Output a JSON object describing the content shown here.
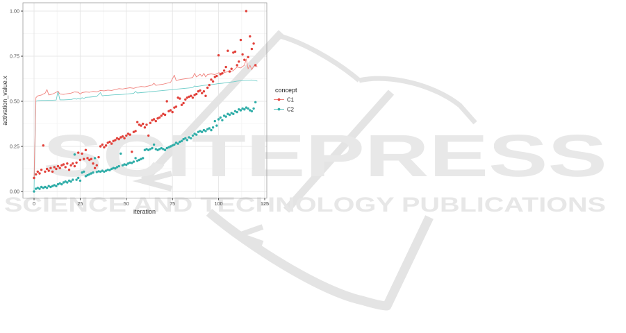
{
  "figure": {
    "description": "Line and scatter plot of activation values per iteration for two concepts, with SCITEPRESS watermark"
  },
  "watermark": {
    "logo_text": "SCITEPRESS",
    "sub_text": "SCIENCE AND TECHNOLOGY PUBLICATIONS",
    "color_letters": "#e8e8e8",
    "color_logo": "#e4e4e4"
  },
  "chart_data": {
    "type": "line+scatter",
    "xlabel": "iteration",
    "ylabel": "activation_value.x",
    "xlim": [
      -6,
      126
    ],
    "ylim": [
      -0.037,
      1.046
    ],
    "x_ticks": [
      0,
      25,
      50,
      75,
      100,
      125
    ],
    "x_tick_labels": [
      "0",
      "25",
      "50",
      "75",
      "100",
      "125"
    ],
    "y_ticks": [
      0,
      0.25,
      0.5,
      0.75,
      1
    ],
    "y_tick_labels": [
      "0.00",
      "0.25",
      "0.50",
      "0.75",
      "1.00"
    ],
    "grid": true,
    "legend": {
      "title": "concept",
      "position": "right",
      "entries": [
        {
          "label": "C1"
        },
        {
          "label": "C2"
        }
      ]
    },
    "series": [
      {
        "name": "C1",
        "color_point": "#e2413a",
        "color_line": "#f0827d",
        "points_x": [
          0,
          1,
          2,
          3,
          4,
          5,
          6,
          7,
          8,
          9,
          10,
          11,
          12,
          13,
          14,
          15,
          16,
          17,
          18,
          19,
          20,
          21,
          22,
          23,
          24,
          25,
          26,
          27,
          28,
          29,
          30,
          31,
          32,
          33,
          34,
          35,
          36,
          37,
          38,
          39,
          40,
          41,
          42,
          43,
          44,
          45,
          46,
          47,
          48,
          49,
          50,
          51,
          52,
          53,
          54,
          55,
          56,
          57,
          58,
          59,
          60,
          61,
          62,
          63,
          64,
          65,
          66,
          67,
          68,
          69,
          70,
          71,
          72,
          73,
          74,
          75,
          76,
          77,
          78,
          79,
          80,
          81,
          82,
          83,
          84,
          85,
          86,
          87,
          88,
          89,
          90,
          91,
          92,
          93,
          94,
          95,
          96,
          97,
          98,
          99,
          100,
          101,
          102,
          103,
          104,
          105,
          106,
          107,
          108,
          109,
          110,
          111,
          112,
          113,
          114,
          115,
          116,
          117,
          118,
          119,
          120
        ],
        "points_y": [
          0.075,
          0.095,
          0.11,
          0.1,
          0.12,
          0.255,
          0.11,
          0.125,
          0.115,
          0.13,
          0.11,
          0.135,
          0.125,
          0.14,
          0.13,
          0.145,
          0.15,
          0.135,
          0.155,
          0.12,
          0.145,
          0.155,
          0.14,
          0.16,
          0.215,
          0.175,
          0.21,
          0.18,
          0.23,
          0.185,
          0.175,
          0.18,
          0.155,
          0.13,
          0.145,
          0.19,
          0.25,
          0.26,
          0.245,
          0.255,
          0.27,
          0.275,
          0.265,
          0.28,
          0.285,
          0.295,
          0.29,
          0.3,
          0.305,
          0.295,
          0.31,
          0.32,
          0.315,
          0.22,
          0.33,
          0.335,
          0.385,
          0.37,
          0.365,
          0.375,
          0.355,
          0.37,
          0.31,
          0.38,
          0.395,
          0.4,
          0.39,
          0.405,
          0.41,
          0.42,
          0.43,
          0.425,
          0.5,
          0.445,
          0.45,
          0.44,
          0.465,
          0.47,
          0.52,
          0.515,
          0.48,
          0.49,
          0.51,
          0.52,
          0.525,
          0.53,
          0.52,
          0.535,
          0.54,
          0.555,
          0.56,
          0.545,
          0.555,
          0.53,
          0.575,
          0.59,
          0.62,
          0.61,
          0.635,
          0.64,
          0.755,
          0.65,
          0.655,
          0.67,
          0.69,
          0.78,
          0.665,
          0.68,
          0.77,
          0.775,
          0.7,
          0.72,
          0.84,
          0.76,
          0.73,
          1.0,
          0.745,
          0.86,
          0.79,
          0.82,
          0.7
        ],
        "line": [
          [
            0,
            0.07
          ],
          [
            1,
            0.52
          ],
          [
            2,
            0.53
          ],
          [
            4,
            0.535
          ],
          [
            6,
            0.545
          ],
          [
            7,
            0.565
          ],
          [
            8,
            0.535
          ],
          [
            10,
            0.54
          ],
          [
            12,
            0.55
          ],
          [
            13,
            0.556
          ],
          [
            14,
            0.54
          ],
          [
            16,
            0.538
          ],
          [
            18,
            0.542
          ],
          [
            20,
            0.545
          ],
          [
            22,
            0.552
          ],
          [
            24,
            0.55
          ],
          [
            25,
            0.54
          ],
          [
            26,
            0.548
          ],
          [
            28,
            0.552
          ],
          [
            30,
            0.55
          ],
          [
            32,
            0.555
          ],
          [
            34,
            0.552
          ],
          [
            36,
            0.56
          ],
          [
            38,
            0.558
          ],
          [
            40,
            0.562
          ],
          [
            42,
            0.56
          ],
          [
            44,
            0.565
          ],
          [
            46,
            0.57
          ],
          [
            48,
            0.568
          ],
          [
            50,
            0.572
          ],
          [
            52,
            0.575
          ],
          [
            54,
            0.572
          ],
          [
            56,
            0.578
          ],
          [
            58,
            0.582
          ],
          [
            60,
            0.58
          ],
          [
            62,
            0.585
          ],
          [
            64,
            0.59
          ],
          [
            65,
            0.6
          ],
          [
            66,
            0.588
          ],
          [
            68,
            0.592
          ],
          [
            70,
            0.595
          ],
          [
            72,
            0.6
          ],
          [
            74,
            0.605
          ],
          [
            76,
            0.645
          ],
          [
            77,
            0.615
          ],
          [
            78,
            0.618
          ],
          [
            80,
            0.622
          ],
          [
            82,
            0.625
          ],
          [
            84,
            0.628
          ],
          [
            86,
            0.632
          ],
          [
            87,
            0.655
          ],
          [
            88,
            0.635
          ],
          [
            90,
            0.65
          ],
          [
            91,
            0.638
          ],
          [
            92,
            0.655
          ],
          [
            93,
            0.635
          ],
          [
            94,
            0.648
          ],
          [
            96,
            0.652
          ],
          [
            98,
            0.648
          ],
          [
            100,
            0.658
          ],
          [
            102,
            0.655
          ],
          [
            104,
            0.662
          ],
          [
            106,
            0.665
          ],
          [
            108,
            0.67
          ],
          [
            110,
            0.69
          ],
          [
            112,
            0.685
          ],
          [
            114,
            0.7
          ],
          [
            115,
            0.735
          ],
          [
            116,
            0.68
          ],
          [
            117,
            0.7
          ],
          [
            118,
            0.675
          ],
          [
            119,
            0.695
          ],
          [
            120,
            0.7
          ],
          [
            121,
            0.69
          ]
        ]
      },
      {
        "name": "C2",
        "color_point": "#2fada8",
        "color_line": "#6ecdc9",
        "points_x": [
          0,
          1,
          2,
          3,
          4,
          5,
          6,
          7,
          8,
          9,
          10,
          11,
          12,
          13,
          14,
          15,
          16,
          17,
          18,
          19,
          20,
          21,
          22,
          23,
          24,
          25,
          26,
          27,
          28,
          29,
          30,
          31,
          32,
          33,
          34,
          35,
          36,
          37,
          38,
          39,
          40,
          41,
          42,
          43,
          44,
          45,
          46,
          47,
          48,
          49,
          50,
          51,
          52,
          53,
          54,
          55,
          56,
          57,
          58,
          59,
          60,
          61,
          62,
          63,
          64,
          65,
          66,
          67,
          68,
          69,
          70,
          71,
          72,
          73,
          74,
          75,
          76,
          77,
          78,
          79,
          80,
          81,
          82,
          83,
          84,
          85,
          86,
          87,
          88,
          89,
          90,
          91,
          92,
          93,
          94,
          95,
          96,
          97,
          98,
          99,
          100,
          101,
          102,
          103,
          104,
          105,
          106,
          107,
          108,
          109,
          110,
          111,
          112,
          113,
          114,
          115,
          116,
          117,
          118,
          119,
          120
        ],
        "points_y": [
          0.0,
          0.015,
          0.02,
          0.015,
          0.025,
          0.02,
          0.025,
          0.02,
          0.03,
          0.025,
          0.03,
          0.035,
          0.03,
          0.04,
          0.045,
          0.04,
          0.05,
          0.055,
          0.05,
          0.06,
          0.055,
          0.065,
          0.205,
          0.065,
          0.075,
          0.06,
          0.105,
          0.11,
          0.085,
          0.09,
          0.095,
          0.1,
          0.105,
          0.185,
          0.108,
          0.112,
          0.11,
          0.115,
          0.11,
          0.115,
          0.12,
          0.118,
          0.125,
          0.13,
          0.128,
          0.135,
          0.14,
          0.21,
          0.145,
          0.15,
          0.148,
          0.155,
          0.16,
          0.158,
          0.165,
          0.185,
          0.17,
          0.175,
          0.18,
          0.185,
          0.23,
          0.235,
          0.23,
          0.235,
          0.24,
          0.26,
          0.235,
          0.23,
          0.235,
          0.24,
          0.235,
          0.23,
          0.24,
          0.245,
          0.25,
          0.255,
          0.26,
          0.27,
          0.265,
          0.275,
          0.28,
          0.29,
          0.295,
          0.285,
          0.3,
          0.295,
          0.31,
          0.32,
          0.315,
          0.33,
          0.335,
          0.33,
          0.34,
          0.335,
          0.345,
          0.35,
          0.34,
          0.355,
          0.39,
          0.365,
          0.4,
          0.41,
          0.395,
          0.42,
          0.415,
          0.43,
          0.425,
          0.435,
          0.43,
          0.445,
          0.44,
          0.455,
          0.45,
          0.46,
          0.455,
          0.465,
          0.46,
          0.45,
          0.445,
          0.46,
          0.495
        ],
        "line": [
          [
            0,
            0.005
          ],
          [
            1,
            0.5
          ],
          [
            2,
            0.503
          ],
          [
            4,
            0.505
          ],
          [
            6,
            0.505
          ],
          [
            8,
            0.506
          ],
          [
            10,
            0.506
          ],
          [
            12,
            0.507
          ],
          [
            13,
            0.555
          ],
          [
            14,
            0.508
          ],
          [
            16,
            0.508
          ],
          [
            18,
            0.509
          ],
          [
            20,
            0.51
          ],
          [
            22,
            0.515
          ],
          [
            23,
            0.512
          ],
          [
            24,
            0.516
          ],
          [
            25,
            0.512
          ],
          [
            26,
            0.52
          ],
          [
            27,
            0.515
          ],
          [
            28,
            0.522
          ],
          [
            30,
            0.523
          ],
          [
            32,
            0.525
          ],
          [
            34,
            0.527
          ],
          [
            36,
            0.548
          ],
          [
            37,
            0.53
          ],
          [
            38,
            0.532
          ],
          [
            40,
            0.533
          ],
          [
            42,
            0.535
          ],
          [
            44,
            0.536
          ],
          [
            46,
            0.537
          ],
          [
            48,
            0.538
          ],
          [
            50,
            0.54
          ],
          [
            52,
            0.542
          ],
          [
            54,
            0.544
          ],
          [
            55,
            0.555
          ],
          [
            56,
            0.546
          ],
          [
            58,
            0.548
          ],
          [
            60,
            0.55
          ],
          [
            62,
            0.552
          ],
          [
            64,
            0.554
          ],
          [
            66,
            0.556
          ],
          [
            68,
            0.558
          ],
          [
            70,
            0.56
          ],
          [
            72,
            0.562
          ],
          [
            74,
            0.564
          ],
          [
            76,
            0.566
          ],
          [
            78,
            0.568
          ],
          [
            80,
            0.57
          ],
          [
            82,
            0.572
          ],
          [
            84,
            0.574
          ],
          [
            86,
            0.576
          ],
          [
            87,
            0.585
          ],
          [
            88,
            0.582
          ],
          [
            90,
            0.585
          ],
          [
            92,
            0.588
          ],
          [
            94,
            0.59
          ],
          [
            96,
            0.592
          ],
          [
            98,
            0.595
          ],
          [
            100,
            0.598
          ],
          [
            102,
            0.6
          ],
          [
            104,
            0.603
          ],
          [
            106,
            0.606
          ],
          [
            108,
            0.608
          ],
          [
            110,
            0.612
          ],
          [
            112,
            0.614
          ],
          [
            114,
            0.616
          ],
          [
            116,
            0.617
          ],
          [
            118,
            0.618
          ],
          [
            120,
            0.615
          ],
          [
            121,
            0.612
          ]
        ]
      }
    ],
    "style": {
      "panel_border": "#9a9a9a",
      "grid_major": "#e7e7e7",
      "grid_minor": "#f3f3f3",
      "tick_color": "#333333"
    }
  }
}
